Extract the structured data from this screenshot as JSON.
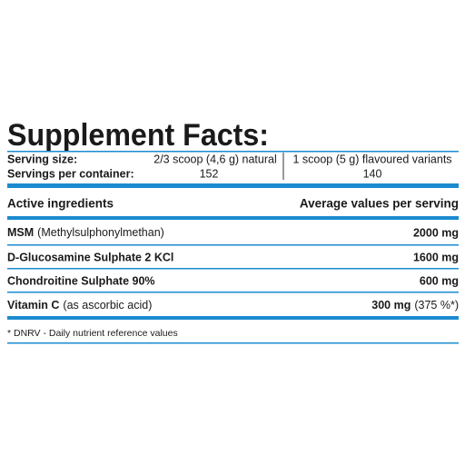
{
  "title": "Supplement Facts:",
  "serving": {
    "size_label": "Serving size:",
    "size_natural": "2/3 scoop (4,6 g) natural",
    "size_flavoured": "1 scoop (5 g) flavoured variants",
    "per_container_label": "Servings per container:",
    "per_container_natural": "152",
    "per_container_flavoured": "140"
  },
  "table": {
    "header": [
      "Active ingredients",
      "Average values per serving"
    ],
    "rows": [
      {
        "name": "MSM",
        "note": "(Methylsulphonylmethan)",
        "value": "2000 mg"
      },
      {
        "name": "D-Glucosamine Sulphate 2 KCl",
        "value": "1600 mg"
      },
      {
        "name": "Chondroitine Sulphate 90%",
        "value": "600 mg"
      },
      {
        "name": "Vitamin C",
        "note": "(as ascorbic acid)",
        "value": "300 mg",
        "value_note": "(375 %*)"
      }
    ]
  },
  "footnote": "* DNRV - Daily nutrient reference values"
}
